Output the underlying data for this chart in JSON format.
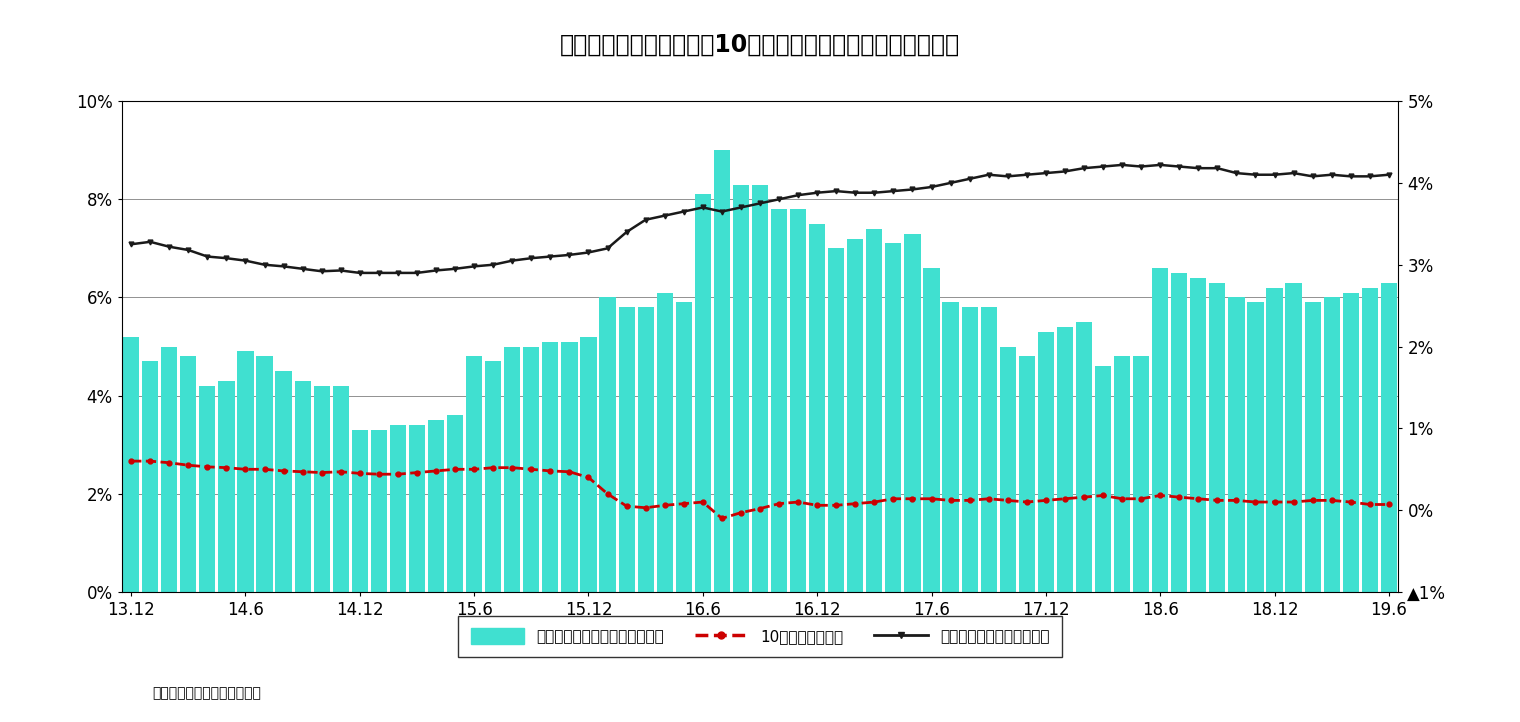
{
  "title": "図表３：分配金成長率、10年金利、リスクプレミアムの推移",
  "source": "（出所）ニッセイ基礎研究所",
  "xtick_positions": [
    0,
    6,
    12,
    18,
    24,
    30,
    36,
    42,
    48,
    54,
    60,
    66
  ],
  "xtick_labels": [
    "13.12",
    "14.6",
    "14.12",
    "15.6",
    "15.12",
    "16.6",
    "16.12",
    "17.6",
    "17.12",
    "18.6",
    "18.12",
    "19.6"
  ],
  "bar_values": [
    5.2,
    4.7,
    5.0,
    4.8,
    4.2,
    4.3,
    4.9,
    4.8,
    4.5,
    4.3,
    4.2,
    4.2,
    3.3,
    3.3,
    3.4,
    3.4,
    3.5,
    3.6,
    4.8,
    4.7,
    5.0,
    5.0,
    5.1,
    5.1,
    5.2,
    6.0,
    5.8,
    5.8,
    6.1,
    5.9,
    8.1,
    9.0,
    8.3,
    8.3,
    7.8,
    7.8,
    7.5,
    7.0,
    7.2,
    7.4,
    7.1,
    7.3,
    6.6,
    5.9,
    5.8,
    5.8,
    5.0,
    4.8,
    5.3,
    5.4,
    5.5,
    4.6,
    4.8,
    4.8,
    6.6,
    6.5,
    6.4,
    6.3,
    6.0,
    5.9,
    6.2,
    6.3,
    5.9,
    6.0,
    6.1,
    6.2,
    6.3
  ],
  "interest_rate": [
    0.6,
    0.6,
    0.58,
    0.55,
    0.53,
    0.52,
    0.5,
    0.5,
    0.48,
    0.47,
    0.46,
    0.47,
    0.45,
    0.44,
    0.44,
    0.46,
    0.48,
    0.5,
    0.5,
    0.52,
    0.52,
    0.5,
    0.48,
    0.47,
    0.4,
    0.2,
    0.05,
    0.03,
    0.06,
    0.08,
    0.1,
    -0.1,
    -0.03,
    0.02,
    0.08,
    0.1,
    0.06,
    0.06,
    0.08,
    0.1,
    0.14,
    0.14,
    0.14,
    0.12,
    0.12,
    0.14,
    0.12,
    0.1,
    0.12,
    0.14,
    0.16,
    0.18,
    0.14,
    0.14,
    0.18,
    0.16,
    0.14,
    0.12,
    0.12,
    0.1,
    0.1,
    0.1,
    0.12,
    0.12,
    0.1,
    0.07,
    0.07
  ],
  "risk_premium": [
    3.25,
    3.28,
    3.22,
    3.18,
    3.1,
    3.08,
    3.05,
    3.0,
    2.98,
    2.95,
    2.92,
    2.93,
    2.9,
    2.9,
    2.9,
    2.9,
    2.93,
    2.95,
    2.98,
    3.0,
    3.05,
    3.08,
    3.1,
    3.12,
    3.15,
    3.2,
    3.4,
    3.55,
    3.6,
    3.65,
    3.7,
    3.65,
    3.7,
    3.75,
    3.8,
    3.85,
    3.88,
    3.9,
    3.88,
    3.88,
    3.9,
    3.92,
    3.95,
    4.0,
    4.05,
    4.1,
    4.08,
    4.1,
    4.12,
    4.14,
    4.18,
    4.2,
    4.22,
    4.2,
    4.22,
    4.2,
    4.18,
    4.18,
    4.12,
    4.1,
    4.1,
    4.12,
    4.08,
    4.1,
    4.08,
    4.08,
    4.1
  ],
  "bar_color": "#40E0D0",
  "interest_color": "#CC0000",
  "risk_color": "#1a1a1a",
  "left_ylim": [
    0,
    10
  ],
  "right_ylim": [
    -1,
    5
  ],
  "left_yticks": [
    0,
    2,
    4,
    6,
    8,
    10
  ],
  "left_ytick_labels": [
    "0%",
    "2%",
    "4%",
    "6%",
    "8%",
    "10%"
  ],
  "right_yticks": [
    -1,
    0,
    1,
    2,
    3,
    4,
    5
  ],
  "right_ytick_labels": [
    "▲1%",
    "0%",
    "1%",
    "2%",
    "3%",
    "4%",
    "5%"
  ],
  "legend_label_bar": "分配金成長率（前年比、左軸）",
  "legend_label_interest": "10年金利（右軸）",
  "legend_label_risk": "リスクプレミアム（右軸）"
}
